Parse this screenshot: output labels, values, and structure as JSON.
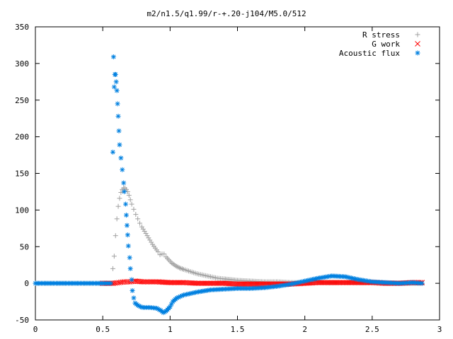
{
  "chart_data": {
    "type": "scatter",
    "title": "m2/n1.5/q1.99/r-+.20-j104/M5.0/512",
    "xlabel": "",
    "ylabel": "",
    "xlim": [
      0,
      3
    ],
    "ylim": [
      -50,
      350
    ],
    "x_ticks": [
      "0",
      "0.5",
      "1",
      "1.5",
      "2",
      "2.5",
      "3"
    ],
    "y_ticks": [
      "-50",
      "0",
      "50",
      "100",
      "150",
      "200",
      "250",
      "300",
      "350"
    ],
    "grid": false,
    "legend_position": "top-right",
    "series": [
      {
        "name": "R stress",
        "marker": "plus",
        "color": "#a0a0a0",
        "points": [
          [
            0.0,
            0
          ],
          [
            0.1,
            0
          ],
          [
            0.2,
            0
          ],
          [
            0.3,
            0
          ],
          [
            0.4,
            0
          ],
          [
            0.5,
            0
          ],
          [
            0.56,
            0
          ],
          [
            0.575,
            20
          ],
          [
            0.585,
            37
          ],
          [
            0.595,
            65
          ],
          [
            0.605,
            88
          ],
          [
            0.615,
            105
          ],
          [
            0.625,
            116
          ],
          [
            0.635,
            124
          ],
          [
            0.645,
            128
          ],
          [
            0.655,
            130
          ],
          [
            0.665,
            130
          ],
          [
            0.675,
            128
          ],
          [
            0.685,
            125
          ],
          [
            0.695,
            120
          ],
          [
            0.705,
            114
          ],
          [
            0.715,
            108
          ],
          [
            0.73,
            101
          ],
          [
            0.745,
            94
          ],
          [
            0.76,
            88
          ],
          [
            0.775,
            82
          ],
          [
            0.79,
            77
          ],
          [
            0.81,
            71
          ],
          [
            0.83,
            65
          ],
          [
            0.85,
            59
          ],
          [
            0.87,
            53
          ],
          [
            0.89,
            48
          ],
          [
            0.91,
            43
          ],
          [
            0.925,
            39
          ],
          [
            0.94,
            40
          ],
          [
            0.955,
            40
          ],
          [
            0.97,
            36
          ],
          [
            0.99,
            32
          ],
          [
            1.01,
            28
          ],
          [
            1.04,
            24
          ],
          [
            1.07,
            21
          ],
          [
            1.1,
            19
          ],
          [
            1.15,
            16
          ],
          [
            1.2,
            13
          ],
          [
            1.25,
            11
          ],
          [
            1.3,
            9
          ],
          [
            1.35,
            7
          ],
          [
            1.4,
            6
          ],
          [
            1.5,
            4
          ],
          [
            1.6,
            3
          ],
          [
            1.7,
            2
          ],
          [
            1.8,
            2
          ],
          [
            1.9,
            1
          ],
          [
            2.0,
            1
          ],
          [
            2.2,
            1
          ],
          [
            2.4,
            1
          ],
          [
            2.6,
            0
          ],
          [
            2.8,
            0
          ],
          [
            2.87,
            0
          ]
        ]
      },
      {
        "name": "G work",
        "marker": "cross",
        "color": "#ff0000",
        "points": [
          [
            0.5,
            0
          ],
          [
            0.58,
            0
          ],
          [
            0.62,
            1
          ],
          [
            0.66,
            2
          ],
          [
            0.7,
            2
          ],
          [
            0.74,
            3
          ],
          [
            0.8,
            2
          ],
          [
            0.9,
            2
          ],
          [
            1.0,
            1
          ],
          [
            1.1,
            1
          ],
          [
            1.2,
            0
          ],
          [
            1.3,
            0
          ],
          [
            1.4,
            0
          ],
          [
            1.5,
            -1
          ],
          [
            1.6,
            -1
          ],
          [
            1.7,
            -1
          ],
          [
            1.8,
            -1
          ],
          [
            1.9,
            -1
          ],
          [
            2.0,
            0
          ],
          [
            2.1,
            1
          ],
          [
            2.2,
            1
          ],
          [
            2.3,
            1
          ],
          [
            2.4,
            1
          ],
          [
            2.5,
            1
          ],
          [
            2.6,
            0
          ],
          [
            2.7,
            0
          ],
          [
            2.8,
            1
          ],
          [
            2.87,
            1
          ]
        ]
      },
      {
        "name": "Acoustic flux",
        "marker": "star",
        "color": "#0080e0",
        "points": [
          [
            0.0,
            0
          ],
          [
            0.1,
            0
          ],
          [
            0.2,
            0
          ],
          [
            0.3,
            0
          ],
          [
            0.4,
            0
          ],
          [
            0.5,
            0
          ],
          [
            0.56,
            0
          ],
          [
            0.575,
            179
          ],
          [
            0.58,
            309
          ],
          [
            0.585,
            268
          ],
          [
            0.59,
            285
          ],
          [
            0.595,
            285
          ],
          [
            0.6,
            275
          ],
          [
            0.605,
            263
          ],
          [
            0.61,
            245
          ],
          [
            0.615,
            228
          ],
          [
            0.62,
            208
          ],
          [
            0.625,
            189
          ],
          [
            0.635,
            171
          ],
          [
            0.645,
            155
          ],
          [
            0.655,
            137
          ],
          [
            0.66,
            125
          ],
          [
            0.67,
            108
          ],
          [
            0.675,
            93
          ],
          [
            0.68,
            79
          ],
          [
            0.685,
            66
          ],
          [
            0.69,
            51
          ],
          [
            0.7,
            35
          ],
          [
            0.705,
            20
          ],
          [
            0.715,
            5
          ],
          [
            0.72,
            -10
          ],
          [
            0.73,
            -20
          ],
          [
            0.74,
            -27
          ],
          [
            0.76,
            -30
          ],
          [
            0.78,
            -32
          ],
          [
            0.8,
            -33
          ],
          [
            0.85,
            -33
          ],
          [
            0.9,
            -34
          ],
          [
            0.93,
            -37
          ],
          [
            0.95,
            -40
          ],
          [
            0.97,
            -38
          ],
          [
            1.0,
            -32
          ],
          [
            1.02,
            -25
          ],
          [
            1.05,
            -20
          ],
          [
            1.1,
            -16
          ],
          [
            1.2,
            -12
          ],
          [
            1.3,
            -9
          ],
          [
            1.4,
            -8
          ],
          [
            1.5,
            -7
          ],
          [
            1.6,
            -7
          ],
          [
            1.7,
            -6
          ],
          [
            1.8,
            -4
          ],
          [
            1.9,
            -1
          ],
          [
            2.0,
            3
          ],
          [
            2.1,
            7
          ],
          [
            2.2,
            10
          ],
          [
            2.3,
            9
          ],
          [
            2.4,
            5
          ],
          [
            2.5,
            2
          ],
          [
            2.6,
            1
          ],
          [
            2.7,
            0
          ],
          [
            2.8,
            1
          ],
          [
            2.87,
            0
          ]
        ]
      }
    ]
  }
}
